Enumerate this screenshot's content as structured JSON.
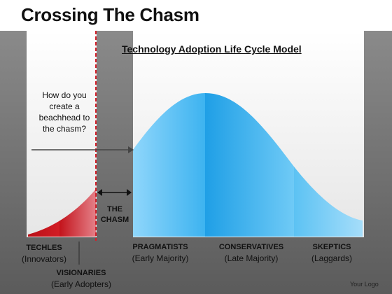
{
  "title": "Crossing The Chasm",
  "diagram_heading": "Technology Adoption Life Cycle Model",
  "question_text": "How do you create a beachhead to the chasm?",
  "chasm_label": "THE CHASM",
  "segments": [
    {
      "name": "TECHLES",
      "sub": "(Innovators)"
    },
    {
      "name": "VISIONARIES",
      "sub": "(Early Adopters)"
    },
    {
      "name": "PRAGMATISTS",
      "sub": "(Early Majority)"
    },
    {
      "name": "CONSERVATIVES",
      "sub": "(Late Majority)"
    },
    {
      "name": "SKEPTICS",
      "sub": "(Laggards)"
    }
  ],
  "logo_text": "Your Logo",
  "colors": {
    "early_markets": "#c0141c",
    "mainstream": "#36b3ee",
    "chasm_line": "#d3202a",
    "panel": "#f2f2f2"
  }
}
